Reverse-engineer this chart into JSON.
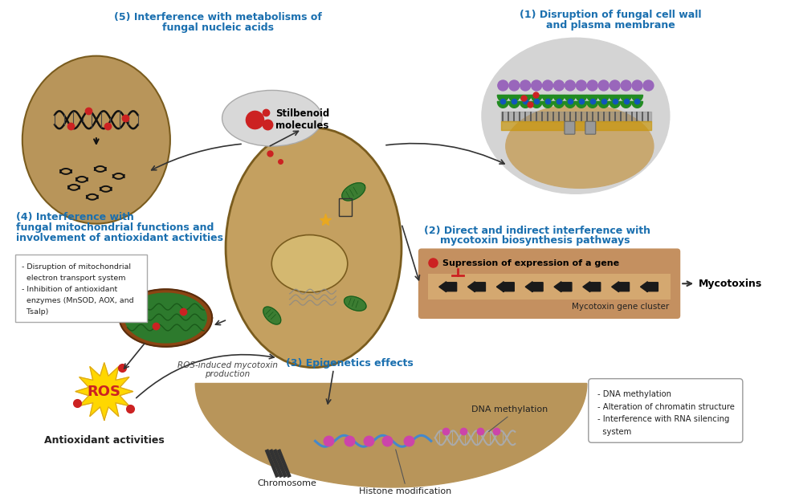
{
  "bg_color": "#ffffff",
  "brown_color": "#b8955a",
  "blue_color": "#1a6faf",
  "dark_brown": "#7a5c1e",
  "cell_brown": "#c4a060",
  "nucleus_brown": "#d4b870",
  "gray_light": "#d0d0d0",
  "green_dark": "#2d7a2d",
  "red_dot": "#cc2222",
  "gold": "#FFD700",
  "label1_line1": "(1) Disruption of fungal cell wall",
  "label1_line2": "and plasma membrane",
  "label2_line1": "(2) Direct and indirect interference with",
  "label2_line2": "mycotoxin biosynthesis pathways",
  "label3": "(3) Epigenetics effects",
  "label4_line1": "(4) Interference with",
  "label4_line2": "fungal mitochondrial functions and",
  "label4_line3": "involvement of antioxidant activities",
  "label5_line1": "(5) Interference with metabolisms of",
  "label5_line2": "fungal nucleic acids",
  "stilbenoid_label": "Stilbenoid\nmolecules",
  "suppression_label": "Supression of expression of a gene",
  "mycotoxin_gene_label": "Mycotoxin gene cluster",
  "mycotoxins_label": "Mycotoxins",
  "ros_label": "ROS",
  "antioxidant_label": "Antioxidant activities",
  "ros_induced_label": "ROS-induced mycotoxin\nproduction",
  "chromosome_label": "Chromosome",
  "histone_label": "Histone modification",
  "dna_methyl_label": "DNA methylation",
  "box4_lines": [
    "- Disruption of mitochondrial",
    "  electron transport system",
    "- Inhibition of antioxidant",
    "  enzymes (MnSOD, AOX, and",
    "  Tsalp)"
  ],
  "box_epig_lines": [
    "- DNA methylation",
    "- Alteration of chromatin structure",
    "- Interference with RNA silencing",
    "  system"
  ]
}
